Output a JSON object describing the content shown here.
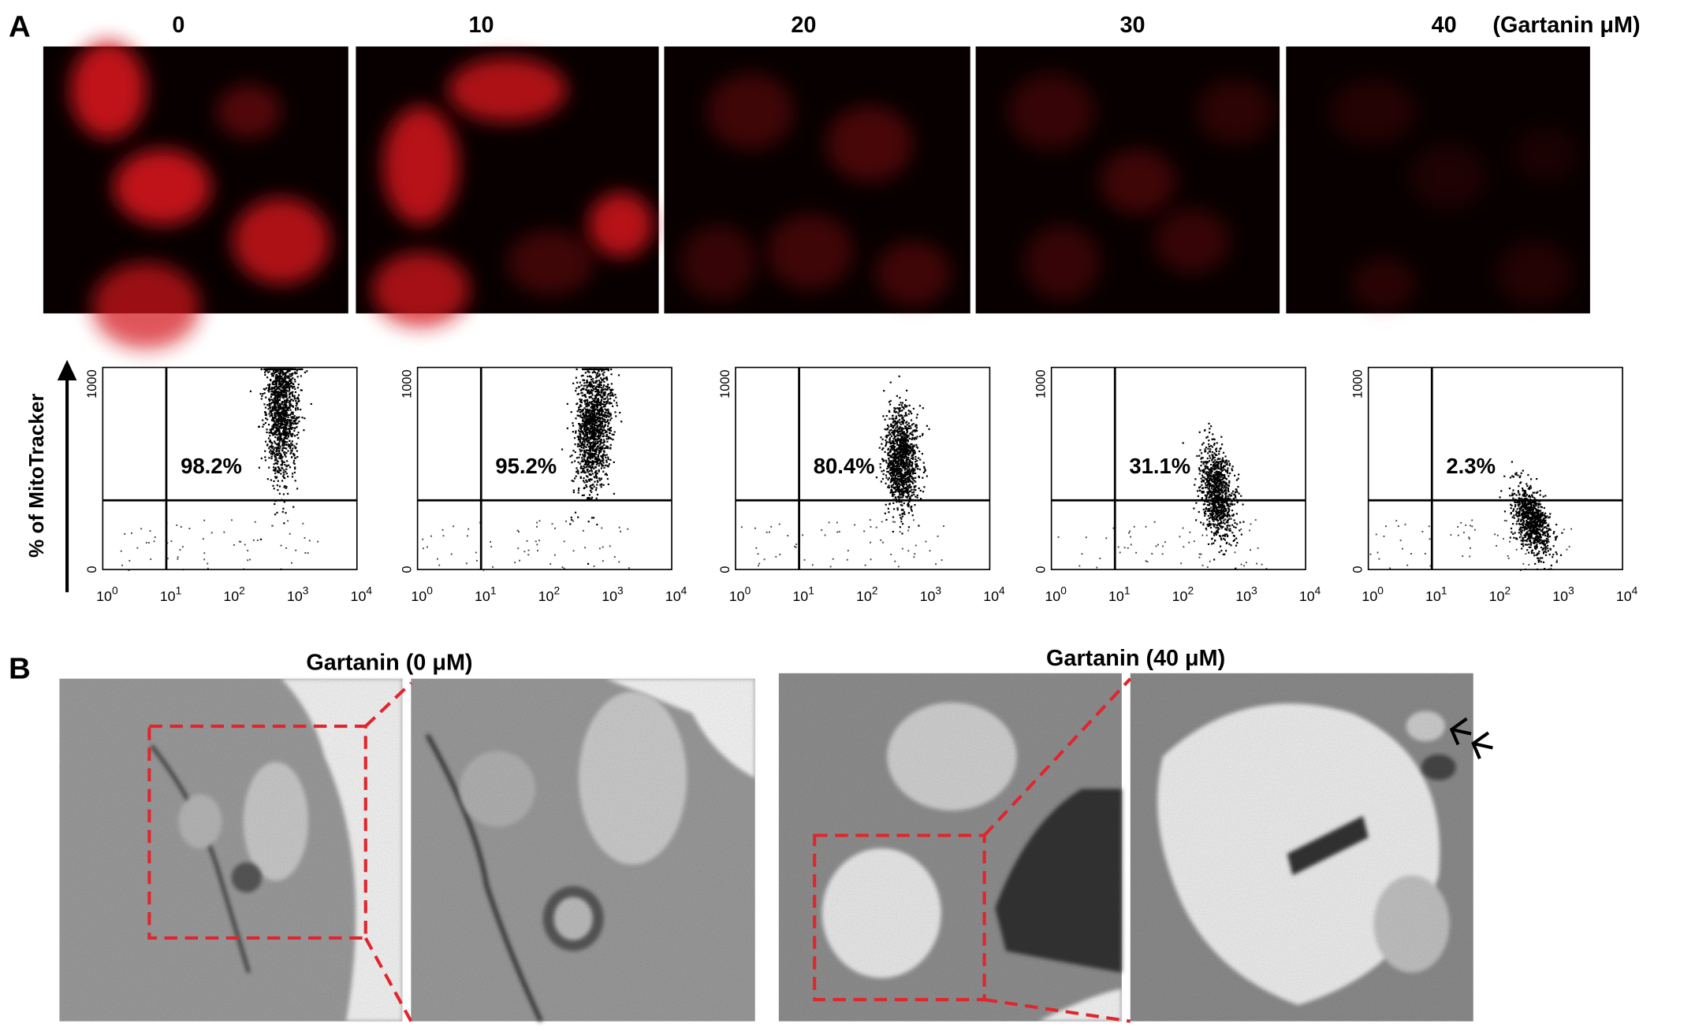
{
  "panel_a": {
    "label": "A",
    "doses": [
      "0",
      "10",
      "20",
      "30",
      "40"
    ],
    "unit": "(Gartanin μM)",
    "flow": {
      "y_label": "% of MitoTracker",
      "y_ticks": [
        "0",
        "1000"
      ],
      "x_tick_base": "10",
      "x_tick_exponents": [
        "0",
        "1",
        "2",
        "3",
        "4"
      ],
      "percentages": [
        "98.2%",
        "95.2%",
        "80.4%",
        "31.1%",
        "2.3%"
      ]
    }
  },
  "panel_b": {
    "label": "B",
    "titles": [
      "Gartanin (0 μM)",
      "Gartanin (40 μM)"
    ]
  }
}
